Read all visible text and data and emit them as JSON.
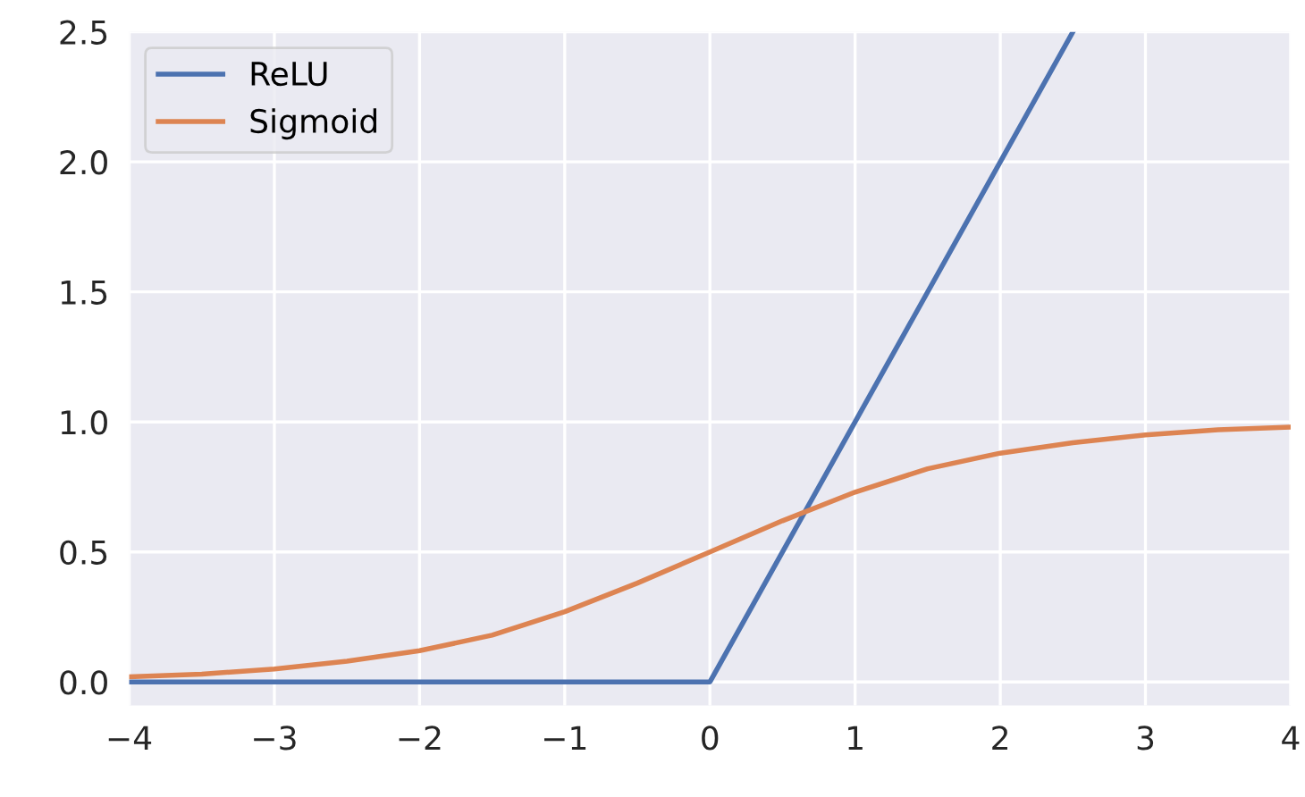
{
  "chart_data": {
    "type": "line",
    "series": [
      {
        "name": "ReLU",
        "color": "#4c72b0",
        "x": [
          -4,
          -3,
          -2,
          -1,
          0,
          1,
          2,
          2.5
        ],
        "values": [
          0,
          0,
          0,
          0,
          0,
          1,
          2,
          2.5
        ]
      },
      {
        "name": "Sigmoid",
        "color": "#dd8452",
        "x": [
          -4,
          -3.5,
          -3,
          -2.5,
          -2,
          -1.5,
          -1,
          -0.5,
          0,
          0.5,
          1,
          1.5,
          2,
          2.5,
          3,
          3.5,
          4
        ],
        "values": [
          0.02,
          0.03,
          0.05,
          0.08,
          0.12,
          0.18,
          0.27,
          0.38,
          0.5,
          0.62,
          0.73,
          0.82,
          0.88,
          0.92,
          0.95,
          0.97,
          0.98
        ]
      }
    ],
    "xlim": [
      -4,
      4
    ],
    "xticks": [
      {
        "value": -4,
        "label": "−4"
      },
      {
        "value": -3,
        "label": "−3"
      },
      {
        "value": -2,
        "label": "−2"
      },
      {
        "value": -1,
        "label": "−1"
      },
      0,
      1,
      2,
      3,
      4
    ],
    "ylim": [
      -0.09,
      2.5
    ],
    "yticks": [
      {
        "value": 0,
        "label": "0.0"
      },
      0.5,
      {
        "value": 1,
        "label": "1.0"
      },
      1.5,
      {
        "value": 2,
        "label": "2.0"
      },
      2.5
    ],
    "grid": true,
    "legend": "top left",
    "marker": "none",
    "line_style": "solid"
  }
}
